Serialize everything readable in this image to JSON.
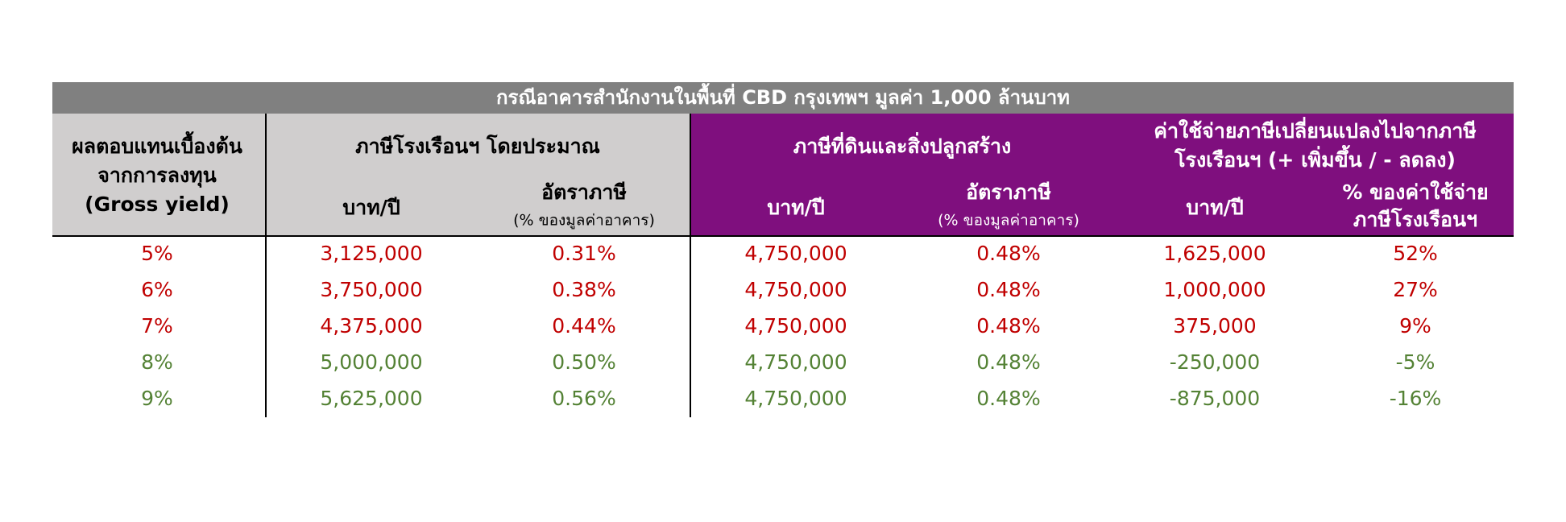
{
  "header": {
    "title": "กรณีอาคารสำนักงานในพื้นที่ CBD กรุงเทพฯ มูลค่า 1,000 ล้านบาท",
    "gross_yield": [
      "ผลตอบแทนเบื้องต้น",
      "จากการลงทุน",
      "(Gross yield)"
    ],
    "groups": [
      {
        "title": [
          "ภาษีโรงเรือนฯ โดยประมาณ"
        ],
        "subheaders": [
          [
            "บาท/ปี"
          ],
          [
            "อัตราภาษี",
            "(% ของมูลค่าอาคาร)"
          ]
        ]
      },
      {
        "title": [
          "ภาษีที่ดินและสิ่งปลูกสร้าง"
        ],
        "subheaders": [
          [
            "บาท/ปี"
          ],
          [
            "อัตราภาษี",
            "(% ของมูลค่าอาคาร)"
          ]
        ]
      },
      {
        "title": [
          "ค่าใช้จ่ายภาษีเปลี่ยนแปลงไปจากภาษี",
          "โรงเรือนฯ (+ เพิ่มขึ้น / - ลดลง)"
        ],
        "subheaders": [
          [
            "บาท/ปี"
          ],
          [
            "% ของค่าใช้จ่าย",
            "ภาษีโรงเรือนฯ"
          ]
        ]
      }
    ]
  },
  "table": {
    "rows": [
      {
        "color": "#c00000",
        "cells": [
          "5%",
          "3,125,000",
          "0.31%",
          "4,750,000",
          "0.48%",
          "1,625,000",
          "52%"
        ]
      },
      {
        "color": "#c00000",
        "cells": [
          "6%",
          "3,750,000",
          "0.38%",
          "4,750,000",
          "0.48%",
          "1,000,000",
          "27%"
        ]
      },
      {
        "color": "#c00000",
        "cells": [
          "7%",
          "4,375,000",
          "0.44%",
          "4,750,000",
          "0.48%",
          "375,000",
          "9%"
        ]
      },
      {
        "color": "#548235",
        "cells": [
          "8%",
          "5,000,000",
          "0.50%",
          "4,750,000",
          "0.48%",
          "-250,000",
          "-5%"
        ]
      },
      {
        "color": "#548235",
        "cells": [
          "9%",
          "5,625,000",
          "0.56%",
          "4,750,000",
          "0.48%",
          "-875,000",
          "-16%"
        ]
      }
    ]
  }
}
